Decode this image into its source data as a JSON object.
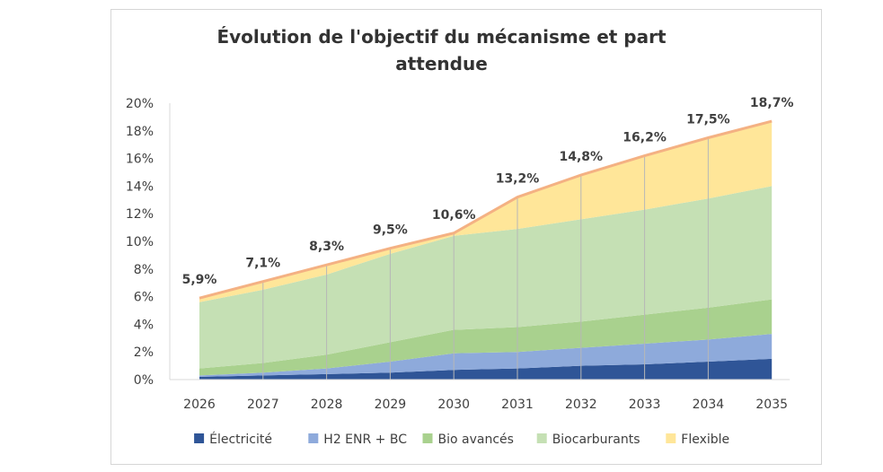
{
  "chart_data": {
    "type": "area",
    "stacked": true,
    "title_line1": "Évolution de l'objectif du mécanisme et part",
    "title_line2": "attendue",
    "xlabel": "",
    "ylabel": "",
    "x": [
      "2026",
      "2027",
      "2028",
      "2029",
      "2030",
      "2031",
      "2032",
      "2033",
      "2034",
      "2035"
    ],
    "ylim": [
      0,
      20
    ],
    "yticks": [
      0,
      2,
      4,
      6,
      8,
      10,
      12,
      14,
      16,
      18,
      20
    ],
    "ytick_labels": [
      "0%",
      "2%",
      "4%",
      "6%",
      "8%",
      "10%",
      "12%",
      "14%",
      "16%",
      "18%",
      "20%"
    ],
    "grid": false,
    "legend_position": "bottom",
    "series": [
      {
        "name": "Électricité",
        "color": "#2f5597",
        "values": [
          0.2,
          0.3,
          0.4,
          0.5,
          0.7,
          0.8,
          1.0,
          1.1,
          1.3,
          1.5
        ]
      },
      {
        "name": "H2 ENR + BC",
        "color": "#8eaadb",
        "values": [
          0.1,
          0.2,
          0.4,
          0.8,
          1.2,
          1.2,
          1.3,
          1.5,
          1.6,
          1.8
        ]
      },
      {
        "name": "Bio avancés",
        "color": "#a9d18e",
        "values": [
          0.5,
          0.7,
          1.0,
          1.4,
          1.7,
          1.8,
          1.9,
          2.1,
          2.3,
          2.5
        ]
      },
      {
        "name": "Biocarburants",
        "color": "#c5e0b4",
        "values": [
          4.8,
          5.3,
          5.8,
          6.4,
          6.8,
          7.1,
          7.4,
          7.6,
          7.9,
          8.2
        ]
      },
      {
        "name": "Flexible",
        "color": "#ffe699",
        "values": [
          0.3,
          0.6,
          0.7,
          0.4,
          0.2,
          2.3,
          3.2,
          3.9,
          4.4,
          4.7
        ]
      }
    ],
    "total_line": {
      "color": "#f4b183",
      "values": [
        5.9,
        7.1,
        8.3,
        9.5,
        10.6,
        13.2,
        14.8,
        16.2,
        17.5,
        18.7
      ],
      "labels": [
        "5,9%",
        "7,1%",
        "8,3%",
        "9,5%",
        "10,6%",
        "13,2%",
        "14,8%",
        "16,2%",
        "17,5%",
        "18,7%"
      ]
    },
    "axis_color": "#d9d9d9",
    "divider_color": "#b7b7b7"
  }
}
